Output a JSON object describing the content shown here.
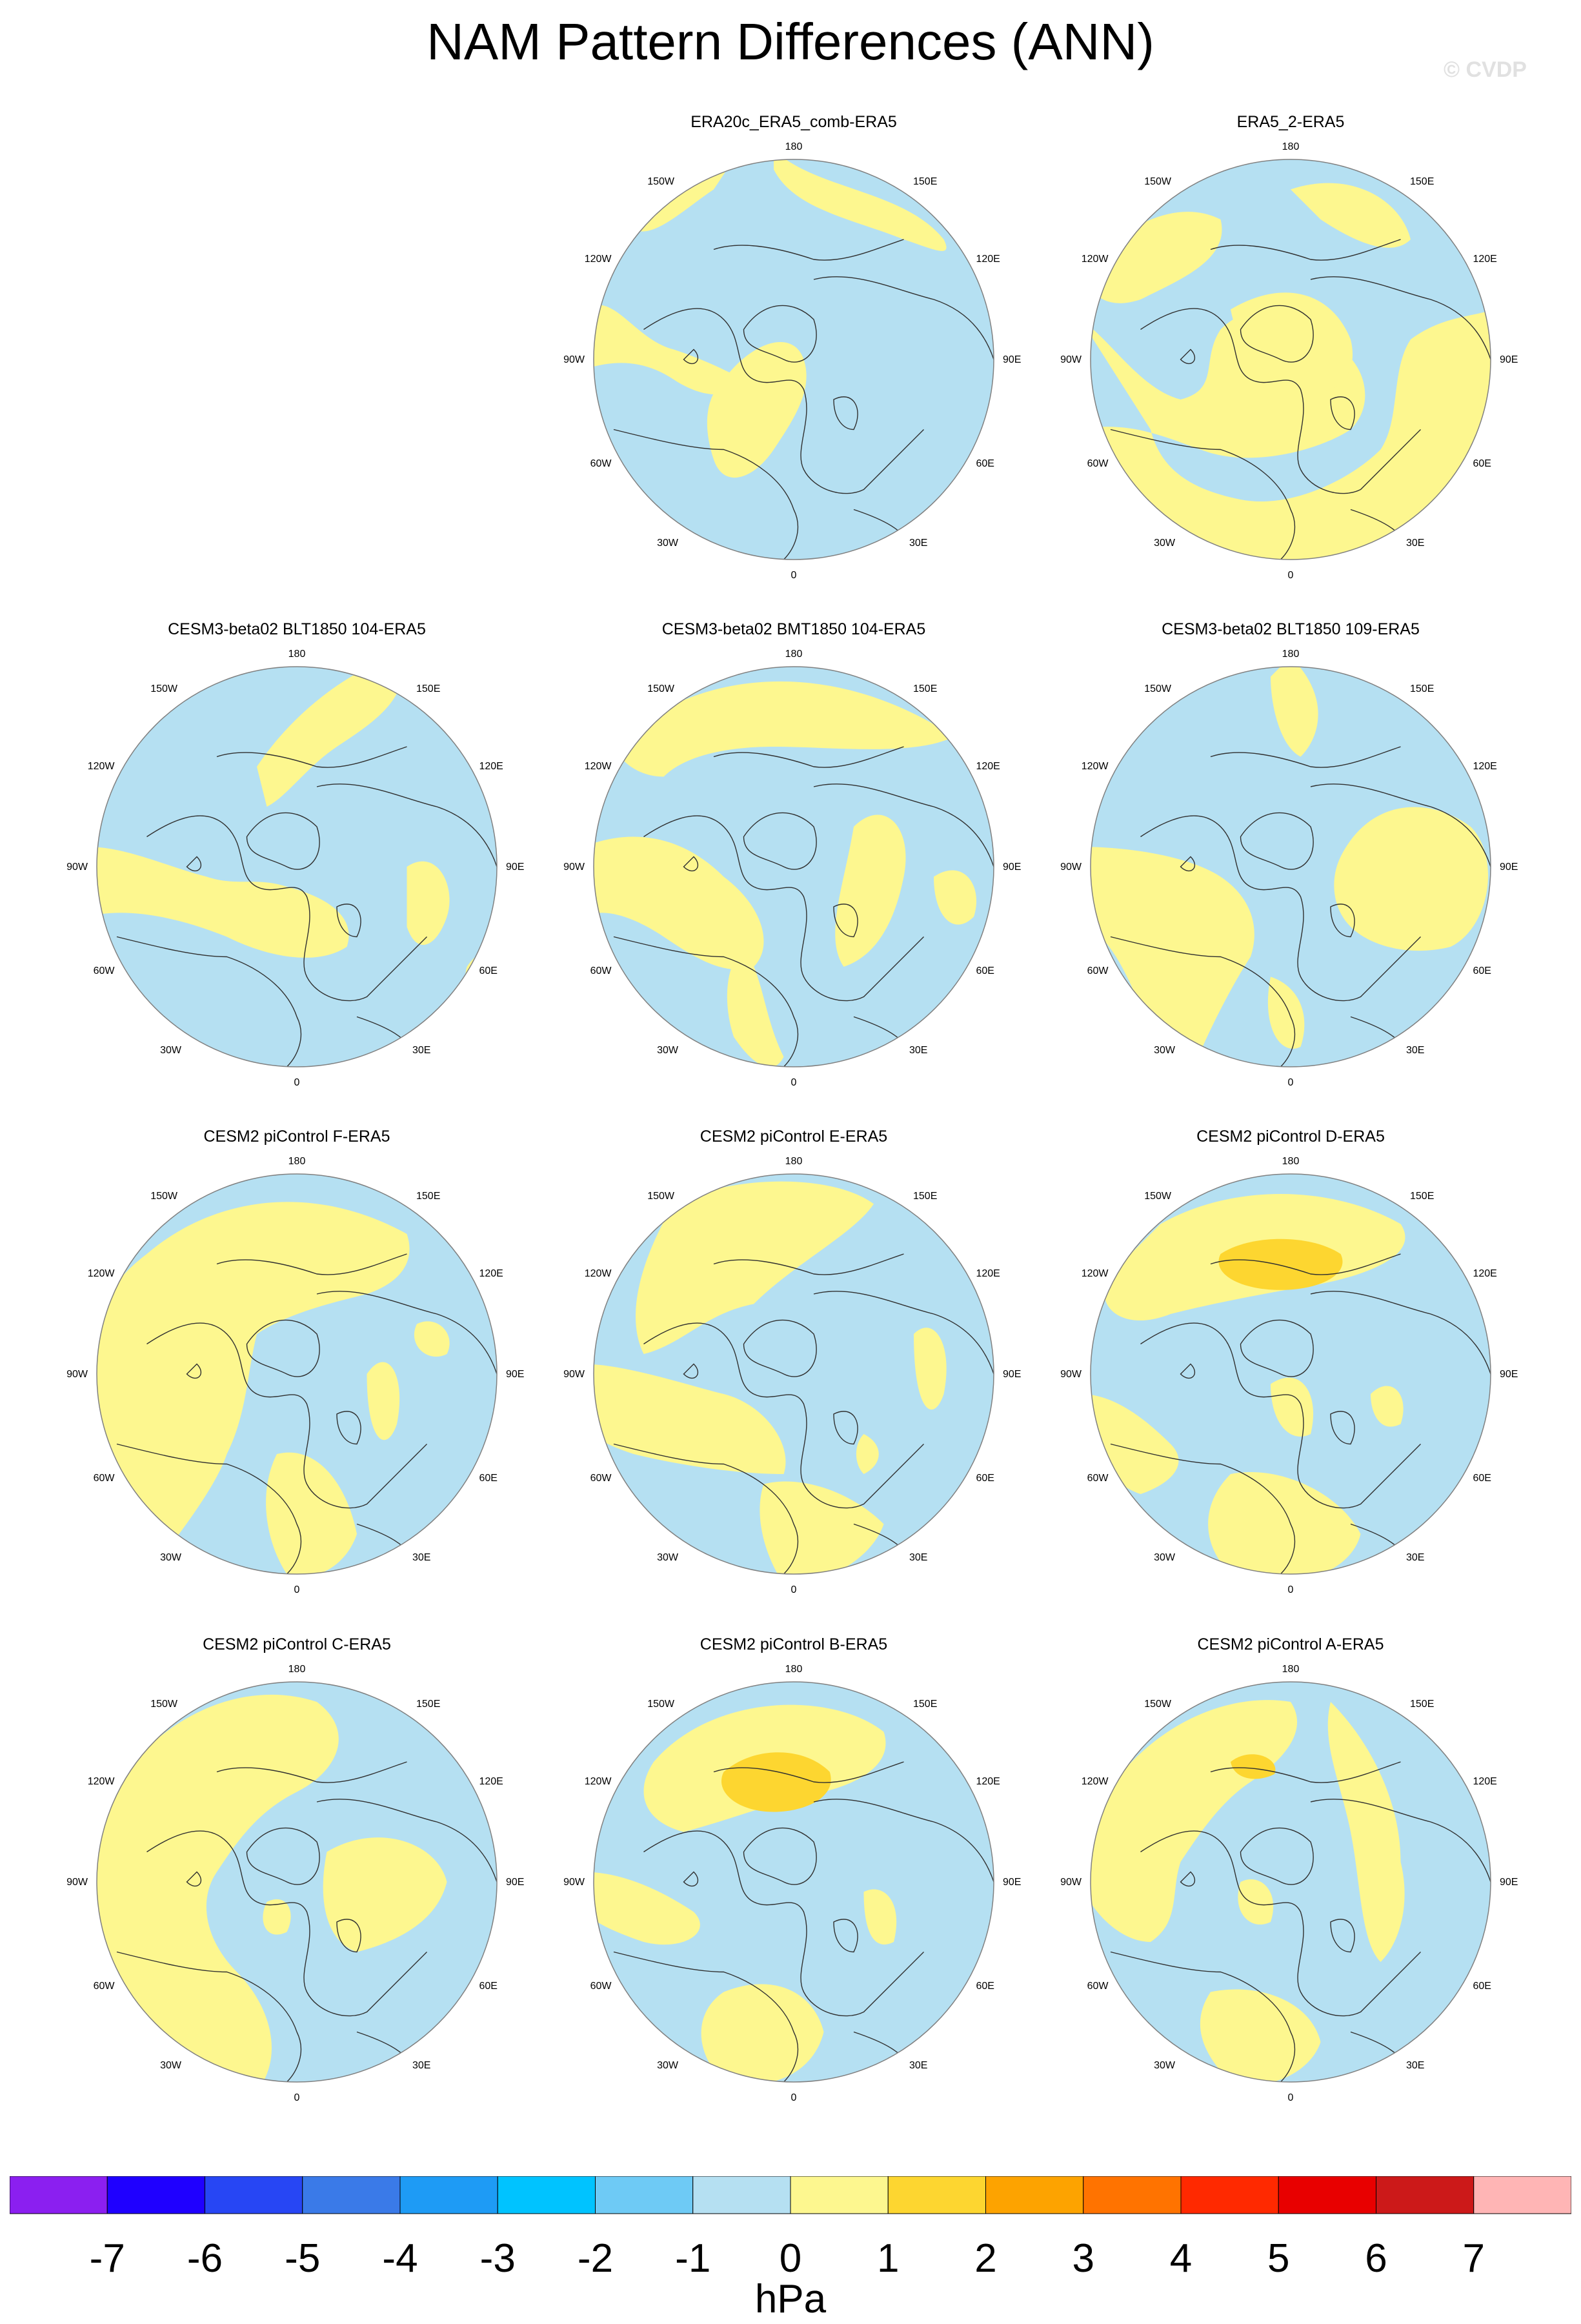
{
  "title": "NAM Pattern Differences (ANN)",
  "copyright": "© CVDP",
  "lon_labels": {
    "top": "180",
    "bottom": "0",
    "l150": "150W",
    "l120": "120W",
    "l90": "90W",
    "l60": "60W",
    "l30": "30W",
    "r150": "150E",
    "r120": "120E",
    "r90": "90E",
    "r60": "60E",
    "r30": "30E"
  },
  "colors": {
    "negative_small": "#b5e0f2",
    "positive_small": "#fdf78f",
    "positive_1_2": "#fdd630",
    "coast": "#303030",
    "grid_border": "#808080"
  },
  "panels": [
    {
      "title": "ERA20c_ERA5_comb-ERA5",
      "pattern": 0
    },
    {
      "title": "ERA5_2-ERA5",
      "pattern": 1
    },
    {
      "title": "CESM3-beta02 BLT1850 104-ERA5",
      "pattern": 2
    },
    {
      "title": "CESM3-beta02 BMT1850 104-ERA5",
      "pattern": 3
    },
    {
      "title": "CESM3-beta02 BLT1850 109-ERA5",
      "pattern": 4
    },
    {
      "title": "CESM2 piControl F-ERA5",
      "pattern": 5
    },
    {
      "title": "CESM2 piControl E-ERA5",
      "pattern": 6
    },
    {
      "title": "CESM2 piControl D-ERA5",
      "pattern": 7
    },
    {
      "title": "CESM2 piControl C-ERA5",
      "pattern": 8
    },
    {
      "title": "CESM2 piControl B-ERA5",
      "pattern": 9
    },
    {
      "title": "CESM2 piControl A-ERA5",
      "pattern": 10
    }
  ],
  "colorbar": {
    "colors": [
      "#8b1ff0",
      "#1f00ff",
      "#2746f4",
      "#3a7ae8",
      "#1e9bf5",
      "#00c3ff",
      "#6ecaf5",
      "#b5e0f2",
      "#fdf78f",
      "#fdd630",
      "#fda300",
      "#ff7300",
      "#ff2900",
      "#e80000",
      "#cc1919",
      "#ffb5b5"
    ],
    "labels": [
      "-7",
      "-6",
      "-5",
      "-4",
      "-3",
      "-2",
      "-1",
      "0",
      "1",
      "2",
      "3",
      "4",
      "5",
      "6",
      "7"
    ],
    "units": "hPa"
  }
}
